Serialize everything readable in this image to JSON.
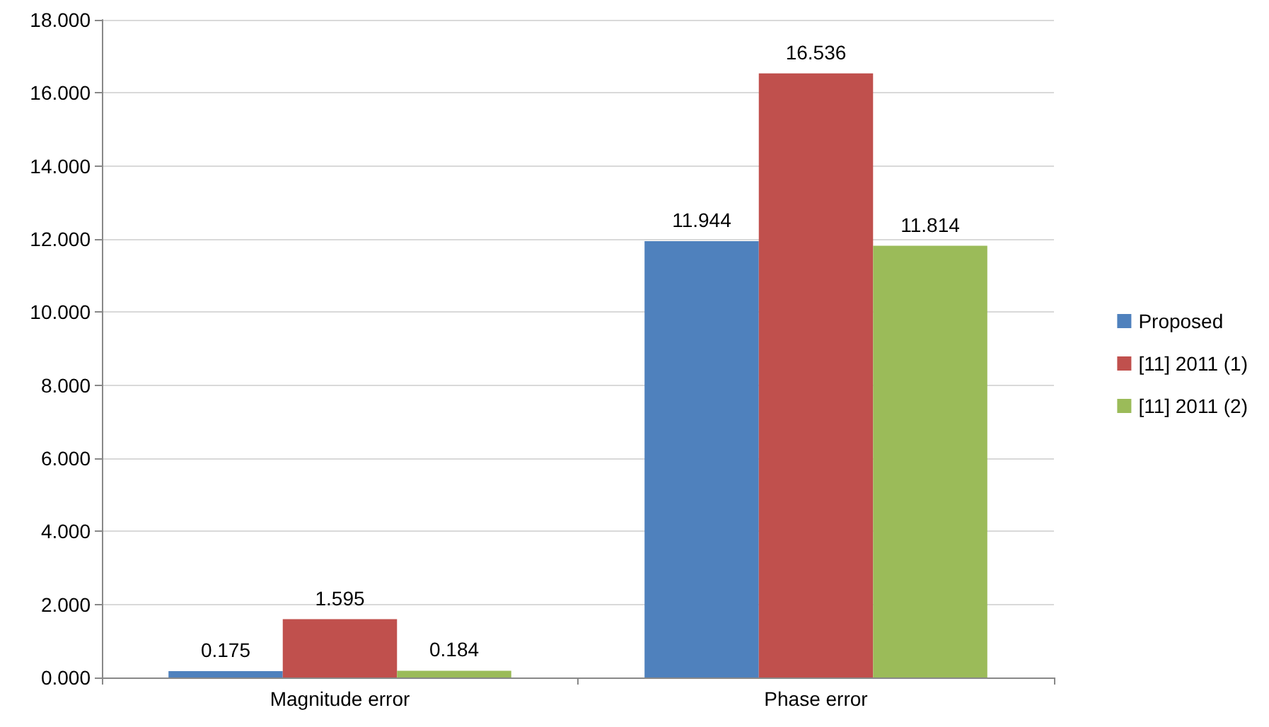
{
  "chart_data": {
    "type": "bar",
    "categories": [
      "Magnitude error",
      "Phase error"
    ],
    "series": [
      {
        "name": "Proposed",
        "color": "#4f81bd",
        "values": [
          0.175,
          11.944
        ]
      },
      {
        "name": "[11] 2011 (1)",
        "color": "#c0504d",
        "values": [
          1.595,
          16.536
        ]
      },
      {
        "name": "[11] 2011 (2)",
        "color": "#9bbb59",
        "values": [
          0.184,
          11.814
        ]
      }
    ],
    "ylim": [
      0,
      18
    ],
    "yticks": [
      {
        "value": 0,
        "label": "0.000"
      },
      {
        "value": 2,
        "label": "2.000"
      },
      {
        "value": 4,
        "label": "4.000"
      },
      {
        "value": 6,
        "label": "6.000"
      },
      {
        "value": 8,
        "label": "8.000"
      },
      {
        "value": 10,
        "label": "10.000"
      },
      {
        "value": 12,
        "label": "12.000"
      },
      {
        "value": 14,
        "label": "14.000"
      },
      {
        "value": 16,
        "label": "16.000"
      },
      {
        "value": 18,
        "label": "18.000"
      }
    ],
    "grid": "y",
    "legend": "right",
    "data_labels": true
  }
}
